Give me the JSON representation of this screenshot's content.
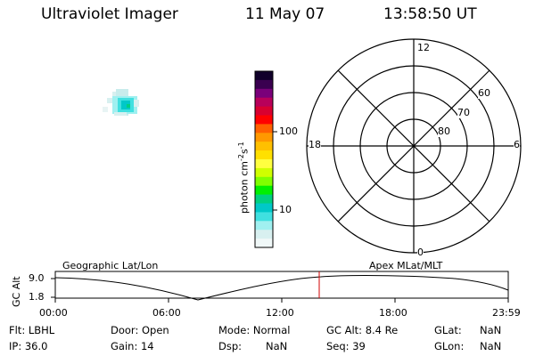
{
  "header": {
    "instrument": "Ultraviolet Imager",
    "date": "11 May 07",
    "time": "13:58:50 UT"
  },
  "colorbar": {
    "label_main": "photon cm",
    "label_exp1": "-2",
    "label_mid": "s",
    "label_exp2": "-1",
    "tick_100": "100",
    "tick_10": "10",
    "colors": [
      "#10002a",
      "#3a0050",
      "#7a007a",
      "#b8005a",
      "#d80030",
      "#ff0000",
      "#ff6000",
      "#ff9800",
      "#ffc000",
      "#ffe000",
      "#ffff40",
      "#d0ff00",
      "#80ff00",
      "#00f000",
      "#00d080",
      "#00c8c8",
      "#40e0e0",
      "#a0f0f0",
      "#d8f0f0",
      "#f0f8f8"
    ]
  },
  "polar": {
    "mlt_12": "12",
    "mlt_18": "18",
    "mlt_6": "6",
    "mlt_0": "0",
    "lat_60": "60",
    "lat_70": "70",
    "lat_80": "80"
  },
  "orbit": {
    "ylabel": "GC Alt",
    "tick_top": "9.0",
    "tick_bottom": "1.8",
    "left_title": "Geographic Lat/Lon",
    "right_title": "Apex MLat/MLT",
    "x_ticks": [
      "00:00",
      "06:00",
      "12:00",
      "18:00",
      "23:59"
    ]
  },
  "footer": {
    "filter": "Flt: LBHL",
    "door": "Door: Open",
    "mode": "Mode: Normal",
    "gc_alt": "GC Alt: 8.4 Re",
    "glat_label": "GLat:",
    "glat_value": "NaN",
    "ip": "IP: 36.0",
    "gain": "Gain: 14",
    "dsp_label": "Dsp:",
    "dsp_value": "NaN",
    "seq": "Seq: 39",
    "glon_label": "GLon:",
    "glon_value": "NaN"
  }
}
